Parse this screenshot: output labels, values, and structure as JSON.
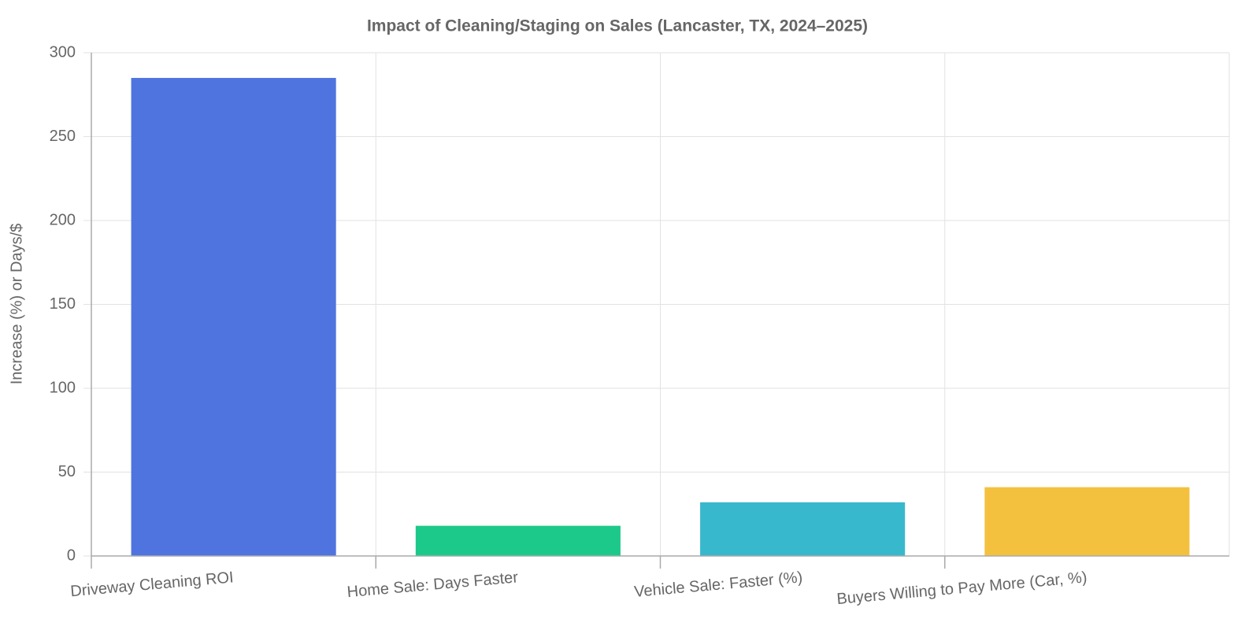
{
  "chart_data": {
    "type": "bar",
    "title": "Impact of Cleaning/Staging on Sales (Lancaster, TX, 2024–2025)",
    "y_label": "Increase (%) or Days/$",
    "categories": [
      "Driveway Cleaning ROI",
      "Home Sale: Days Faster",
      "Vehicle Sale: Faster (%)",
      "Buyers Willing to Pay More (Car, %)"
    ],
    "values": [
      285,
      18,
      32,
      41
    ],
    "colors": [
      "#4f74e0",
      "#1dc98a",
      "#38b8cd",
      "#f4c13f"
    ],
    "ylim": [
      0,
      300
    ],
    "yticks": [
      0,
      50,
      100,
      150,
      200,
      250,
      300
    ],
    "grid": true
  }
}
